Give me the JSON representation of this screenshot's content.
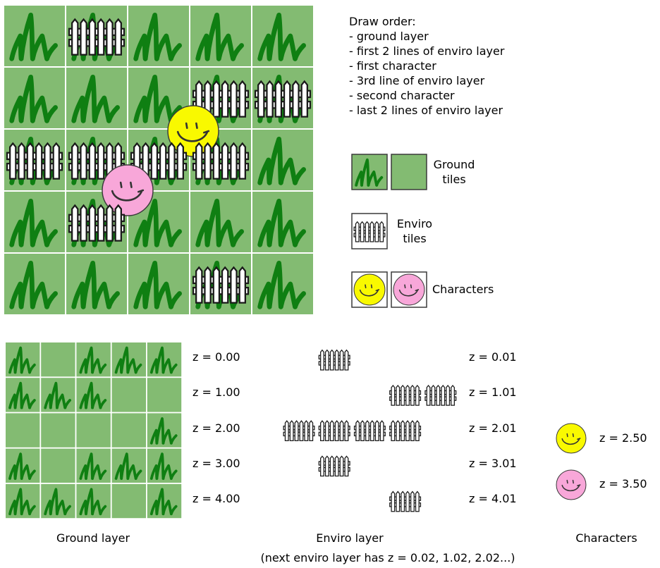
{
  "draw_order": {
    "title": "Draw order:",
    "steps": [
      " - ground layer",
      " - first 2 lines of enviro layer",
      " - first character",
      " - 3rd line of enviro layer",
      " - second character",
      " - last 2 lines of enviro layer"
    ]
  },
  "legend": {
    "ground": [
      "Ground",
      "tiles"
    ],
    "enviro": [
      "Enviro",
      "tiles"
    ],
    "characters": "Characters"
  },
  "colors": {
    "grass_tile": "#83bb72",
    "grass_blade": "#0f7f12",
    "tile_gap": "#ffffff",
    "character_yellow": "#f9f900",
    "character_pink": "#f8a7d9",
    "outline": "#3a3a3a"
  },
  "top_map": {
    "ground": [
      [
        "grass",
        "grass",
        "grass",
        "grass",
        "grass"
      ],
      [
        "grass",
        "grass",
        "grass",
        "grass",
        "grass"
      ],
      [
        "grass",
        "grass",
        "grass",
        "grass",
        "grass"
      ],
      [
        "grass",
        "grass",
        "grass",
        "grass",
        "grass"
      ],
      [
        "grass",
        "grass",
        "grass",
        "grass",
        "grass"
      ]
    ],
    "fences": [
      [
        0,
        1
      ],
      [
        1,
        3
      ],
      [
        1,
        4
      ],
      [
        2,
        0
      ],
      [
        2,
        1
      ],
      [
        2,
        2
      ],
      [
        2,
        3
      ],
      [
        3,
        1
      ],
      [
        4,
        3
      ]
    ],
    "characters": [
      {
        "name": "yellow",
        "color": "#f9f900"
      },
      {
        "name": "pink",
        "color": "#f8a7d9"
      }
    ]
  },
  "ground_layer": {
    "tiles": [
      [
        "grass",
        "plain",
        "grass",
        "grass",
        "grass"
      ],
      [
        "grass",
        "grass",
        "grass",
        "plain",
        "plain"
      ],
      [
        "plain",
        "plain",
        "plain",
        "plain",
        "grass"
      ],
      [
        "grass",
        "plain",
        "grass",
        "grass",
        "grass"
      ],
      [
        "grass",
        "grass",
        "grass",
        "plain",
        "grass"
      ]
    ],
    "z_labels": [
      "z = 0.00",
      "z = 1.00",
      "z = 2.00",
      "z = 3.00",
      "z = 4.00"
    ],
    "caption": "Ground layer"
  },
  "enviro_layer": {
    "fences": [
      [
        0,
        1
      ],
      [
        1,
        3
      ],
      [
        1,
        4
      ],
      [
        2,
        0
      ],
      [
        2,
        1
      ],
      [
        2,
        2
      ],
      [
        2,
        3
      ],
      [
        3,
        1
      ],
      [
        4,
        3
      ]
    ],
    "z_labels": [
      "z = 0.01",
      "z = 1.01",
      "z = 2.01",
      "z = 3.01",
      "z = 4.01"
    ],
    "caption": "Enviro layer",
    "note": "(next enviro layer has z = 0.02, 1.02, 2.02...)"
  },
  "characters_layer": {
    "z_labels": [
      "z = 2.50",
      "z = 3.50"
    ],
    "caption": "Characters"
  }
}
